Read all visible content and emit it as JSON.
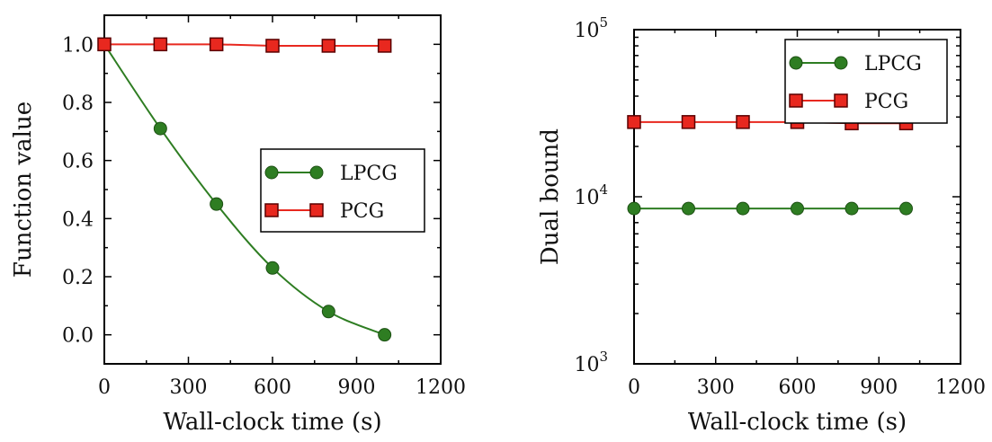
{
  "chart_data": [
    {
      "type": "line",
      "x": [
        0,
        200,
        400,
        600,
        800,
        1000
      ],
      "series": [
        {
          "name": "LPCG",
          "values": [
            1.0,
            0.71,
            0.45,
            0.23,
            0.08,
            0.0
          ],
          "color": "#2e7d22",
          "marker": "circle"
        },
        {
          "name": "PCG",
          "values": [
            1.0,
            1.0,
            1.0,
            0.995,
            0.995,
            0.995
          ],
          "color": "#e8281f",
          "marker": "square"
        }
      ],
      "xlabel": "Wall-clock time (s)",
      "ylabel": "Function value",
      "xlim": [
        0,
        1200
      ],
      "ylim": [
        -0.1,
        1.1
      ],
      "xticks": [
        "0",
        "300",
        "600",
        "900",
        "1200"
      ],
      "yticks": [
        "0.0",
        "0.2",
        "0.4",
        "0.6",
        "0.8",
        "1.0"
      ],
      "legend": "center-right",
      "grid": false
    },
    {
      "type": "line",
      "x": [
        0,
        200,
        400,
        600,
        800,
        1000
      ],
      "series": [
        {
          "name": "LPCG",
          "values": [
            8500,
            8500,
            8500,
            8500,
            8500,
            8500
          ],
          "color": "#2e7d22",
          "marker": "circle"
        },
        {
          "name": "PCG",
          "values": [
            28000,
            28000,
            28000,
            28000,
            27500,
            27500
          ],
          "color": "#e8281f",
          "marker": "square"
        }
      ],
      "xlabel": "Wall-clock time (s)",
      "ylabel": "Dual bound",
      "xlim": [
        0,
        1200
      ],
      "ylim": [
        1000,
        100000
      ],
      "yscale": "log",
      "xticks": [
        "0",
        "300",
        "600",
        "900",
        "1200"
      ],
      "yticks": [
        {
          "base": "10",
          "exp": "3"
        },
        {
          "base": "10",
          "exp": "4"
        },
        {
          "base": "10",
          "exp": "5"
        }
      ],
      "legend": "top-right",
      "grid": false
    }
  ]
}
